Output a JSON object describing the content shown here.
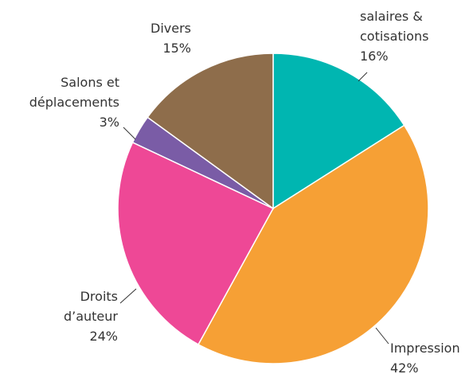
{
  "chart_data": {
    "type": "pie",
    "categories": [
      "salaires &\ncotisations",
      "Impression",
      "Droits\nd’auteur",
      "Salons et\ndéplacements",
      "Divers"
    ],
    "values": [
      16,
      42,
      24,
      3,
      15
    ],
    "value_labels": [
      "16%",
      "42%",
      "24%",
      "3%",
      "15%"
    ],
    "colors": [
      "#00b6b1",
      "#f6a035",
      "#ee4896",
      "#7a5ca6",
      "#8e6d4b"
    ]
  }
}
